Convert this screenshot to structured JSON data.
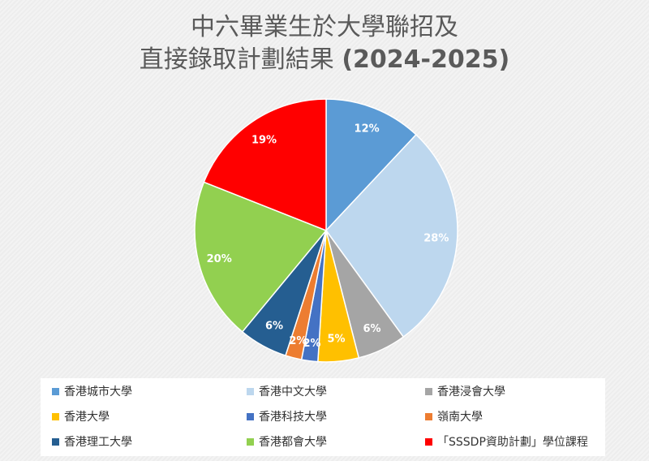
{
  "title": {
    "line1": "中六畢業生於大學聯招及",
    "line2_text": "直接錄取計劃結果 ",
    "line2_year": "(2024-2025)"
  },
  "chart_data": {
    "type": "pie",
    "title": "中六畢業生於大學聯招及直接錄取計劃結果 (2024-2025)",
    "slices": [
      {
        "label": "香港城市大學",
        "value": 12,
        "display": "12%",
        "color": "#5b9bd5"
      },
      {
        "label": "香港中文大學",
        "value": 28,
        "display": "28%",
        "color": "#bdd7ee"
      },
      {
        "label": "香港浸會大學",
        "value": 6,
        "display": "6%",
        "color": "#a5a5a5"
      },
      {
        "label": "香港大學",
        "value": 5,
        "display": "5%",
        "color": "#ffc000"
      },
      {
        "label": "香港科技大學",
        "value": 2,
        "display": "2%",
        "color": "#4472c4"
      },
      {
        "label": "嶺南大學",
        "value": 2,
        "display": "2%",
        "color": "#ed7d31"
      },
      {
        "label": "香港理工大學",
        "value": 6,
        "display": "6%",
        "color": "#255e91"
      },
      {
        "label": "香港都會大學",
        "value": 20,
        "display": "20%",
        "color": "#92d050"
      },
      {
        "label": "「SSSDP資助計劃」學位課程",
        "value": 19,
        "display": "19%",
        "color": "#ff0000"
      }
    ],
    "legend_position": "bottom"
  }
}
